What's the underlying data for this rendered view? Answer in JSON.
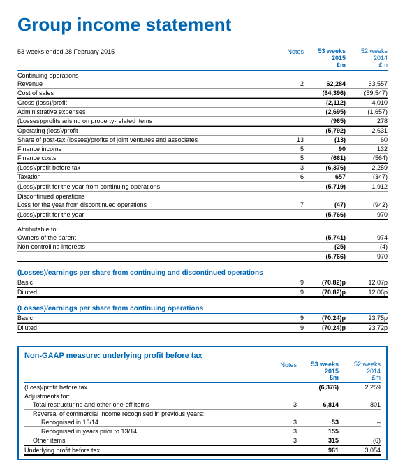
{
  "title": "Group income statement",
  "colors": {
    "accent": "#0066b3",
    "rule": "#999999",
    "heavy_rule": "#000000"
  },
  "period_label": "53 weeks ended 28 February 2015",
  "columns": {
    "notes": "Notes",
    "col1_line1": "53 weeks",
    "col1_line2": "2015",
    "col1_line3": "£m",
    "col2_line1": "52 weeks",
    "col2_line2": "2014",
    "col2_line3": "£m"
  },
  "sections": {
    "continuing": "Continuing operations",
    "discontinued": "Discontinued operations",
    "attributable": "Attributable to:"
  },
  "rows": {
    "revenue": {
      "label": "Revenue",
      "notes": "2",
      "v1": "62,284",
      "v2": "63,557"
    },
    "cost_sales": {
      "label": "Cost of sales",
      "notes": "",
      "v1": "(64,396)",
      "v2": "(59,547)"
    },
    "gross": {
      "label": "Gross (loss)/profit",
      "notes": "",
      "v1": "(2,112)",
      "v2": "4,010"
    },
    "admin": {
      "label": "Administrative expenses",
      "notes": "",
      "v1": "(2,695)",
      "v2": "(1,657)"
    },
    "property": {
      "label": "(Losses)/profits arising on property-related items",
      "notes": "",
      "v1": "(985)",
      "v2": "278"
    },
    "operating": {
      "label": "Operating (loss)/profit",
      "notes": "",
      "v1": "(5,792)",
      "v2": "2,631"
    },
    "jv": {
      "label": "Share of post-tax (losses)/profits of joint ventures and associates",
      "notes": "13",
      "v1": "(13)",
      "v2": "60"
    },
    "fin_income": {
      "label": "Finance income",
      "notes": "5",
      "v1": "90",
      "v2": "132"
    },
    "fin_costs": {
      "label": "Finance costs",
      "notes": "5",
      "v1": "(661)",
      "v2": "(564)"
    },
    "pbt": {
      "label": "(Loss)/profit before tax",
      "notes": "3",
      "v1": "(6,376)",
      "v2": "2,259"
    },
    "tax": {
      "label": "Taxation",
      "notes": "6",
      "v1": "657",
      "v2": "(347)"
    },
    "cont_result": {
      "label": "(Loss)/profit for the year from continuing operations",
      "notes": "",
      "v1": "(5,719)",
      "v2": "1,912"
    },
    "disc_loss": {
      "label": "Loss for the year from discontinued operations",
      "notes": "7",
      "v1": "(47)",
      "v2": "(942)"
    },
    "year_result": {
      "label": "(Loss)/profit for the year",
      "notes": "",
      "v1": "(5,766)",
      "v2": "970"
    },
    "owners": {
      "label": "Owners of the parent",
      "notes": "",
      "v1": "(5,741)",
      "v2": "974"
    },
    "nci": {
      "label": "Non-controlling interests",
      "notes": "",
      "v1": "(25)",
      "v2": "(4)"
    },
    "attr_total": {
      "label": "",
      "notes": "",
      "v1": "(5,766)",
      "v2": "970"
    }
  },
  "eps1": {
    "heading": "(Losses)/earnings per share from continuing and discontinued operations",
    "basic": {
      "label": "Basic",
      "notes": "9",
      "v1": "(70.82)p",
      "v2": "12.07p"
    },
    "diluted": {
      "label": "Diluted",
      "notes": "9",
      "v1": "(70.82)p",
      "v2": "12.06p"
    }
  },
  "eps2": {
    "heading": "(Losses)/earnings per share from continuing operations",
    "basic": {
      "label": "Basic",
      "notes": "9",
      "v1": "(70.24)p",
      "v2": "23.75p"
    },
    "diluted": {
      "label": "Diluted",
      "notes": "9",
      "v1": "(70.24)p",
      "v2": "23.72p"
    }
  },
  "nongaap": {
    "title": "Non-GAAP measure: underlying profit before tax",
    "pbt": {
      "label": "(Loss)/profit before tax",
      "notes": "",
      "v1": "(6,376)",
      "v2": "2,259"
    },
    "adj_label": "Adjustments for:",
    "restruct": {
      "label": "Total restructuring and other one-off items",
      "notes": "3",
      "v1": "6,814",
      "v2": "801"
    },
    "reversal_label": "Reversal of commercial income recognised in previous years:",
    "rec1314": {
      "label": "Recognised in 13/14",
      "notes": "3",
      "v1": "53",
      "v2": "–"
    },
    "recprior": {
      "label": "Recognised in years prior to 13/14",
      "notes": "3",
      "v1": "155",
      "v2": ""
    },
    "other": {
      "label": "Other items",
      "notes": "3",
      "v1": "315",
      "v2": "(6)"
    },
    "underlying": {
      "label": "Underlying profit before tax",
      "notes": "",
      "v1": "961",
      "v2": "3,054"
    }
  }
}
